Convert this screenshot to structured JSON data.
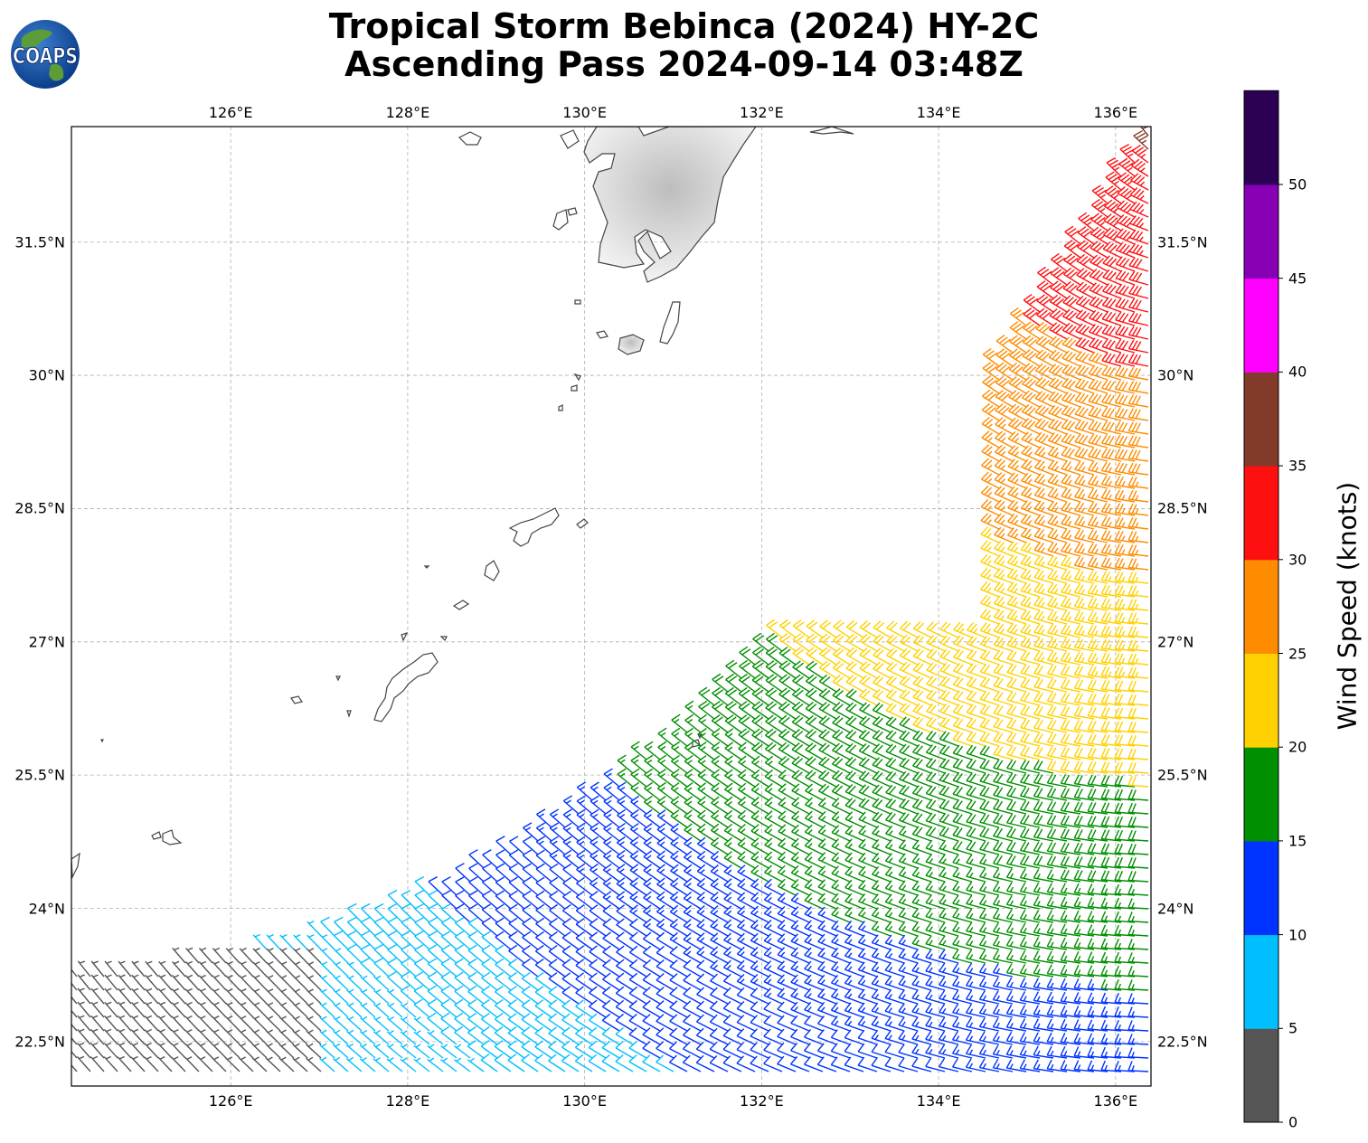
{
  "title_line1": "Tropical Storm Bebinca (2024) HY-2C",
  "title_line2": "Ascending Pass 2024-09-14 03:48Z",
  "logo_text": "COAPS",
  "lon_labels": [
    "126°E",
    "128°E",
    "130°E",
    "132°E",
    "134°E",
    "136°E"
  ],
  "lat_labels": [
    "31.5°N",
    "30°N",
    "28.5°N",
    "27°N",
    "25.5°N",
    "24°N",
    "22.5°N"
  ],
  "colorbar": {
    "label": "Wind Speed (knots)",
    "ticks": [
      "0",
      "5",
      "10",
      "15",
      "20",
      "25",
      "30",
      "35",
      "40",
      "45",
      "50"
    ],
    "bins": [
      {
        "min": 0,
        "max": 5,
        "color": "#555555"
      },
      {
        "min": 5,
        "max": 10,
        "color": "#00bfff"
      },
      {
        "min": 10,
        "max": 15,
        "color": "#0033ff"
      },
      {
        "min": 15,
        "max": 20,
        "color": "#008f00"
      },
      {
        "min": 20,
        "max": 25,
        "color": "#ffd100"
      },
      {
        "min": 25,
        "max": 30,
        "color": "#ff8c00"
      },
      {
        "min": 30,
        "max": 35,
        "color": "#ff1010"
      },
      {
        "min": 35,
        "max": 40,
        "color": "#823b2a"
      },
      {
        "min": 40,
        "max": 45,
        "color": "#ff00ff"
      },
      {
        "min": 45,
        "max": 50,
        "color": "#8800b5"
      },
      {
        "min": 50,
        "max": 55,
        "color": "#2c0055"
      }
    ]
  },
  "map": {
    "lon_range": [
      124.2,
      136.4
    ],
    "lat_range": [
      22.0,
      32.8
    ],
    "grid_lons": [
      126,
      128,
      130,
      132,
      134,
      136
    ],
    "grid_lats": [
      22.5,
      24,
      25.5,
      27,
      28.5,
      30,
      31.5
    ]
  }
}
